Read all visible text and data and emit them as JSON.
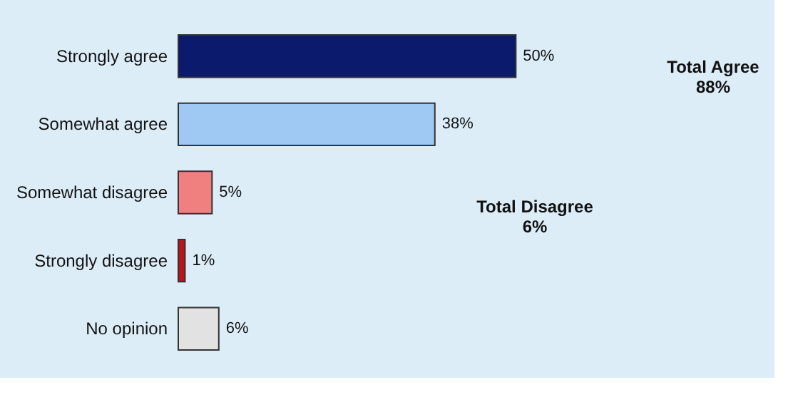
{
  "chart_data": {
    "type": "bar",
    "orientation": "horizontal",
    "categories": [
      "Strongly agree",
      "Somewhat agree",
      "Somewhat disagree",
      "Strongly disagree",
      "No opinion"
    ],
    "values": [
      50,
      38,
      5,
      1,
      6
    ],
    "colors": [
      "#0c1a6e",
      "#9fc9f2",
      "#f07f80",
      "#b8141c",
      "#e2e2e2"
    ],
    "value_labels": [
      "50%",
      "38%",
      "5%",
      "1%",
      "6%"
    ],
    "annotations": [
      "Total Agree\n88%",
      "Total Disagree\n6%"
    ]
  }
}
